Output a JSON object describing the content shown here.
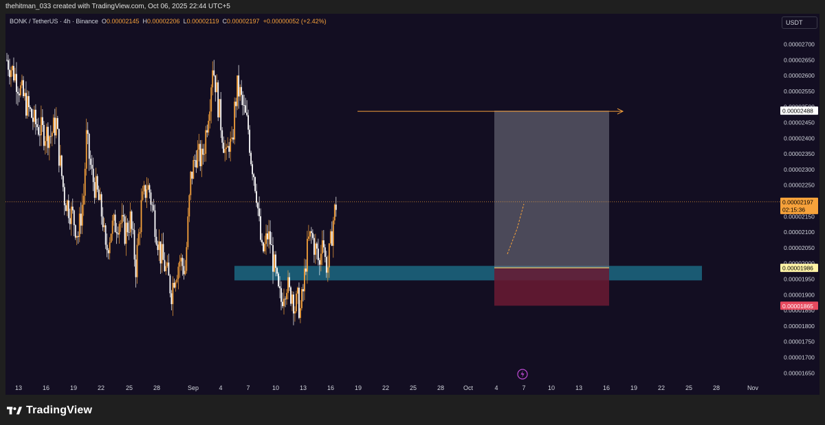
{
  "header": {
    "attribution": "thehitman_033 created with TradingView.com, Oct 06, 2025 22:44 UTC+5"
  },
  "legend": {
    "symbol": "BONK / TetherUS · 4h · Binance",
    "open_label": "O",
    "open": "0.00002145",
    "high_label": "H",
    "high": "0.00002206",
    "low_label": "L",
    "low": "0.00002119",
    "close_label": "C",
    "close": "0.00002197",
    "change": "+0.00000052 (+2.42%)"
  },
  "currency_button": "USDT",
  "footer": {
    "brand": "TradingView"
  },
  "icons": {
    "brand": "tradingview-logo-icon",
    "flash": "lightning-icon",
    "arrow": "arrow-right-icon"
  },
  "colors": {
    "background": "#130e22",
    "bull": "#f7a23b",
    "bear": "#ffffff",
    "support_zone": "#1a5f78",
    "target_zone": "#7a7a86",
    "stop_zone": "#6b1a33",
    "price_label": "#f7a23b",
    "target_label": "#ffffff",
    "entry_label": "#fff3a6",
    "stop_label": "#e84a5f"
  },
  "chart_data": {
    "type": "candlestick",
    "symbol": "BONK/USDT",
    "timeframe": "4h",
    "exchange": "Binance",
    "x_ticks": [
      "13",
      "16",
      "19",
      "22",
      "25",
      "28",
      "Sep",
      "4",
      "7",
      "10",
      "13",
      "16",
      "19",
      "22",
      "25",
      "28",
      "Oct",
      "4",
      "7",
      "10",
      "13",
      "16",
      "19",
      "22",
      "25",
      "28",
      "Nov"
    ],
    "y_ticks": [
      "0.00001650",
      "0.00001700",
      "0.00001750",
      "0.00001800",
      "0.00001850",
      "0.00001900",
      "0.00001950",
      "0.00002000",
      "0.00002050",
      "0.00002100",
      "0.00002150",
      "0.00002200",
      "0.00002250",
      "0.00002300",
      "0.00002350",
      "0.00002400",
      "0.00002450",
      "0.00002500",
      "0.00002550",
      "0.00002600",
      "0.00002650",
      "0.00002700"
    ],
    "ylim": [
      1.61e-05,
      2.77e-05
    ],
    "close_path_approx": [
      [
        0,
        2.65e-05
      ],
      [
        3,
        2.6e-05
      ],
      [
        6,
        2.53e-05
      ],
      [
        10,
        2.45e-05
      ],
      [
        13,
        2.42e-05
      ],
      [
        16,
        2.41e-05
      ],
      [
        18,
        2.45e-05
      ],
      [
        19,
        2.35e-05
      ],
      [
        21,
        2.21e-05
      ],
      [
        24,
        2.15e-05
      ],
      [
        26,
        2.09e-05
      ],
      [
        28,
        2.22e-05
      ],
      [
        29,
        2.4e-05
      ],
      [
        31,
        2.28e-05
      ],
      [
        33,
        2.22e-05
      ],
      [
        35,
        2.14e-05
      ],
      [
        36,
        2.03e-05
      ],
      [
        38,
        2.11e-05
      ],
      [
        41,
        2.14e-05
      ],
      [
        43,
        2.1e-05
      ],
      [
        45,
        2.14e-05
      ],
      [
        47,
        1.99e-05
      ],
      [
        49,
        2.18e-05
      ],
      [
        51,
        2.25e-05
      ],
      [
        52,
        2.23e-05
      ],
      [
        54,
        2.13e-05
      ],
      [
        56,
        2.03e-05
      ],
      [
        58,
        1.98e-05
      ],
      [
        60,
        1.91e-05
      ],
      [
        61,
        1.96e-05
      ],
      [
        63,
        2.01e-05
      ],
      [
        65,
        1.98e-05
      ],
      [
        67,
        2.27e-05
      ],
      [
        69,
        2.35e-05
      ],
      [
        71,
        2.33e-05
      ],
      [
        72,
        2.38e-05
      ],
      [
        74,
        2.53e-05
      ],
      [
        75,
        2.64e-05
      ],
      [
        76,
        2.58e-05
      ],
      [
        77,
        2.51e-05
      ],
      [
        78,
        2.45e-05
      ],
      [
        80,
        2.33e-05
      ],
      [
        81,
        2.39e-05
      ],
      [
        82,
        2.36e-05
      ],
      [
        83,
        2.49e-05
      ],
      [
        84,
        2.56e-05
      ],
      [
        85,
        2.54e-05
      ],
      [
        86,
        2.5e-05
      ],
      [
        88,
        2.43e-05
      ],
      [
        89,
        2.34e-05
      ],
      [
        90,
        2.29e-05
      ],
      [
        91,
        2.23e-05
      ],
      [
        92,
        2.12e-05
      ],
      [
        93,
        2.03e-05
      ],
      [
        94,
        2.05e-05
      ],
      [
        95,
        2.09e-05
      ],
      [
        96,
        2.07e-05
      ],
      [
        97,
        2.01e-05
      ],
      [
        98,
        1.96e-05
      ],
      [
        99,
        1.9e-05
      ],
      [
        100,
        1.88e-05
      ],
      [
        101,
        1.92e-05
      ],
      [
        102,
        1.94e-05
      ],
      [
        103,
        1.9e-05
      ],
      [
        104,
        1.91e-05
      ],
      [
        105,
        1.86e-05
      ],
      [
        106,
        1.88e-05
      ],
      [
        107,
        1.85e-05
      ],
      [
        108,
        1.91e-05
      ],
      [
        109,
        2.01e-05
      ],
      [
        110,
        2.07e-05
      ],
      [
        111,
        2.09e-05
      ],
      [
        112,
        2.06e-05
      ],
      [
        113,
        2.03e-05
      ],
      [
        114,
        1.99e-05
      ],
      [
        115,
        2.11e-05
      ],
      [
        116,
        2.01e-05
      ],
      [
        117,
        1.99e-05
      ],
      [
        118,
        2.06e-05
      ],
      [
        119,
        2.14e-05
      ],
      [
        120,
        2.19e-05
      ]
    ],
    "x_total_bars": 120,
    "last_price": "0.00002197",
    "countdown": "02:15:36",
    "price_line": 2.197e-05,
    "support_zone": {
      "from": 1.97e-05,
      "to": 1.99e-05,
      "x_start_tick": "4",
      "x_end": "Oct 26"
    },
    "position": {
      "type": "long",
      "entry": 1.986e-05,
      "entry_label": "0.00001986",
      "target": 2.488e-05,
      "target_label": "0.00002488",
      "stop": 1.865e-05,
      "stop_label": "0.00001865"
    },
    "target_arrow": {
      "from_tick": "19",
      "to_tick": "16 Oct+",
      "price": 2.488e-05
    },
    "grid": false,
    "legend_position": "top-left"
  }
}
